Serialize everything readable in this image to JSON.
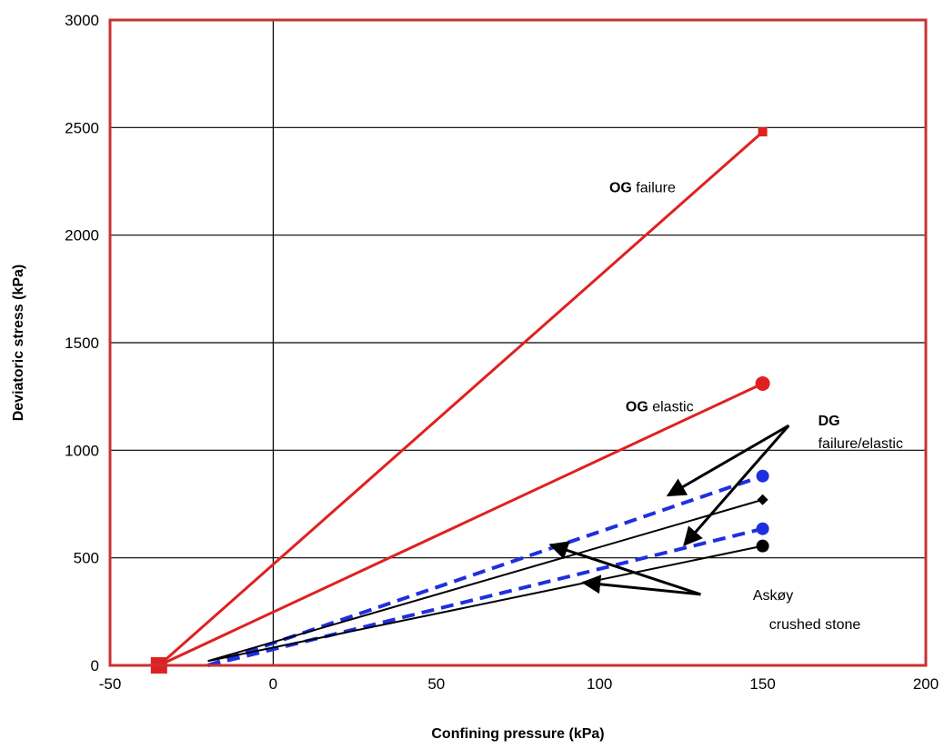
{
  "chart_data": {
    "type": "line",
    "xlabel": "Confining pressure (kPa)",
    "ylabel": "Deviatoric stress (kPa)",
    "xlim": [
      -50,
      200
    ],
    "ylim": [
      0,
      3000
    ],
    "xticks": [
      -50,
      0,
      50,
      100,
      150,
      200
    ],
    "yticks": [
      0,
      500,
      1000,
      1500,
      2000,
      2500,
      3000
    ],
    "grid": "horizontal major gridlines",
    "frame_color": "#c83232",
    "series": [
      {
        "name": "OG failure",
        "color": "#e02020",
        "style": "solid",
        "marker": "square",
        "points": [
          [
            -35,
            0
          ],
          [
            150,
            2480
          ]
        ]
      },
      {
        "name": "OG elastic",
        "color": "#e02020",
        "style": "solid",
        "marker": "circle",
        "points": [
          [
            -35,
            0
          ],
          [
            150,
            1310
          ]
        ]
      },
      {
        "color": "#1f2fe0",
        "style": "dashed",
        "marker": "circle",
        "points": [
          [
            -20,
            0
          ],
          [
            150,
            880
          ]
        ]
      },
      {
        "color": "#1f2fe0",
        "style": "dashed",
        "marker": "circle",
        "points": [
          [
            -20,
            0
          ],
          [
            150,
            635
          ]
        ]
      },
      {
        "color": "#000000",
        "style": "solid",
        "marker": "diamond",
        "points": [
          [
            -20,
            20
          ],
          [
            150,
            770
          ]
        ]
      },
      {
        "color": "#000000",
        "style": "solid",
        "marker": "circle",
        "points": [
          [
            -20,
            20
          ],
          [
            150,
            555
          ]
        ]
      }
    ],
    "annotations": {
      "og_failure": {
        "bold": "OG",
        "text": " failure",
        "x": 103,
        "y": 2200
      },
      "og_elastic": {
        "bold": "OG",
        "text": " elastic",
        "x": 108,
        "y": 1180
      },
      "dg_line1": {
        "bold": "DG",
        "x": 167,
        "y": 1115
      },
      "dg_line2": {
        "text": "failure/elastic",
        "x": 167,
        "y": 1010
      },
      "askoy_line1": {
        "text": "Askøy",
        "x": 147,
        "y": 305
      },
      "askoy_line2": {
        "text": "crushed stone",
        "x": 152,
        "y": 170
      }
    },
    "arrows": [
      {
        "from": [
          158,
          1115
        ],
        "to": [
          121,
          790
        ]
      },
      {
        "from": [
          158,
          1115
        ],
        "to": [
          126,
          560
        ]
      },
      {
        "from": [
          131,
          330
        ],
        "to": [
          95,
          385
        ]
      },
      {
        "from": [
          131,
          330
        ],
        "to": [
          85,
          560
        ]
      }
    ]
  }
}
